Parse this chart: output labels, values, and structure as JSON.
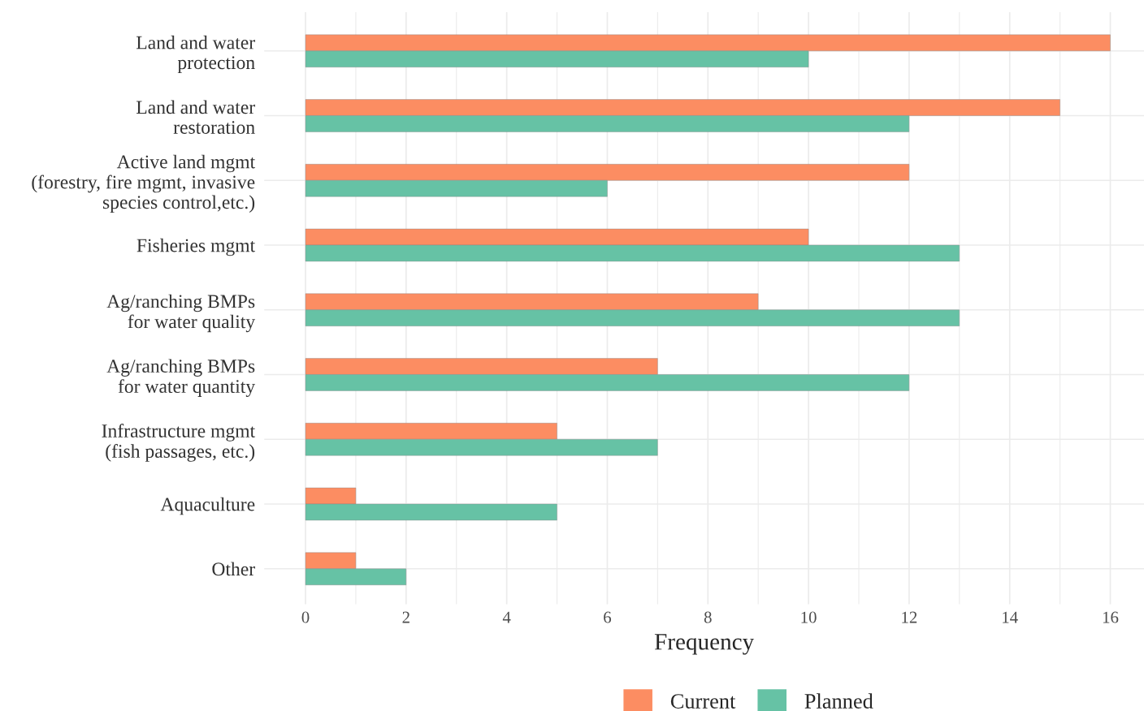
{
  "chart_data": {
    "type": "bar",
    "orientation": "horizontal",
    "xlabel": "Frequency",
    "categories": [
      "Land and water\nprotection",
      "Land and water\nrestoration",
      "Active land mgmt\n(forestry, fire mgmt, invasive\nspecies control,etc.)",
      "Fisheries mgmt",
      "Ag/ranching BMPs\nfor water quality",
      "Ag/ranching BMPs\nfor water quantity",
      "Infrastructure mgmt\n(fish passages, etc.)",
      "Aquaculture",
      "Other"
    ],
    "series": [
      {
        "name": "Current",
        "color": "#fc8d62",
        "values": [
          16,
          15,
          12,
          10,
          9,
          7,
          5,
          1,
          1
        ]
      },
      {
        "name": "Planned",
        "color": "#66c2a5",
        "values": [
          10,
          12,
          6,
          13,
          13,
          12,
          7,
          5,
          2
        ]
      }
    ],
    "xlim": [
      -0.82,
      16.67
    ],
    "xticks": [
      0,
      2,
      4,
      6,
      8,
      10,
      12,
      14,
      16
    ],
    "grid": true,
    "legend": "bottom"
  }
}
